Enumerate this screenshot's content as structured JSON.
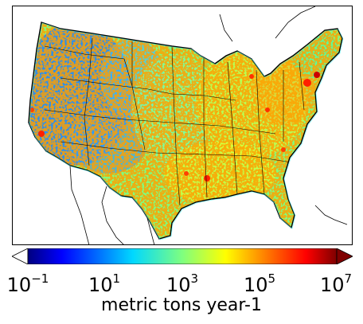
{
  "colorbar": {
    "label": "metric tons year-1",
    "scale": "log",
    "ticks": [
      {
        "base": "10",
        "exp": "−1",
        "value": 0.1
      },
      {
        "base": "10",
        "exp": "1",
        "value": 10
      },
      {
        "base": "10",
        "exp": "3",
        "value": 1000
      },
      {
        "base": "10",
        "exp": "5",
        "value": 100000
      },
      {
        "base": "10",
        "exp": "7",
        "value": 10000000
      }
    ],
    "range": [
      0.1,
      10000000
    ],
    "colormap": [
      "#00007f",
      "#0000ff",
      "#007fff",
      "#00ffff",
      "#7fff7f",
      "#ffff00",
      "#ff7f00",
      "#ff0000",
      "#7f0000"
    ],
    "extend": "both"
  },
  "map": {
    "region": "contiguous United States",
    "background_color": "#ffffff",
    "border_color": "#000000"
  }
}
